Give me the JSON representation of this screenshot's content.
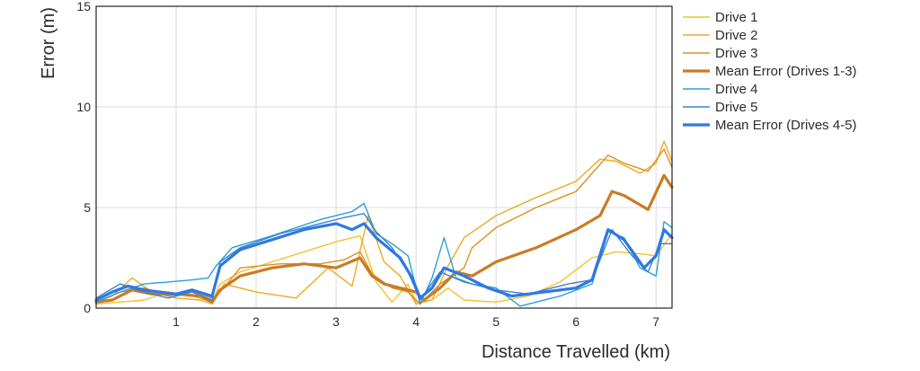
{
  "chart_data": {
    "type": "line",
    "title": "",
    "xlabel": "Distance Travelled (km)",
    "ylabel": "Error (m)",
    "xlim": [
      0,
      7.2
    ],
    "ylim": [
      0,
      15
    ],
    "x_ticks": [
      1,
      2,
      3,
      4,
      5,
      6,
      7
    ],
    "y_ticks": [
      0,
      5,
      10,
      15
    ],
    "grid": true,
    "legend_position": "right",
    "series": [
      {
        "name": "Drive 1",
        "color": "#f2c230",
        "width": 1.4,
        "x": [
          0.0,
          0.3,
          0.6,
          0.9,
          1.2,
          1.45,
          1.55,
          1.8,
          2.2,
          2.6,
          3.0,
          3.3,
          3.5,
          3.7,
          3.9,
          4.0,
          4.2,
          4.4,
          4.6,
          5.0,
          5.4,
          5.8,
          6.2,
          6.5,
          6.8,
          7.0,
          7.2
        ],
        "y": [
          0.2,
          0.3,
          0.4,
          0.8,
          0.6,
          0.3,
          1.2,
          1.8,
          2.3,
          2.8,
          3.3,
          3.6,
          1.3,
          0.3,
          1.2,
          0.3,
          0.4,
          1.0,
          0.4,
          0.3,
          0.6,
          1.3,
          2.5,
          2.8,
          2.7,
          2.6,
          3.7
        ]
      },
      {
        "name": "Drive 2",
        "color": "#eeaa22",
        "width": 1.4,
        "x": [
          0.0,
          0.2,
          0.45,
          0.7,
          1.0,
          1.3,
          1.45,
          1.6,
          2.0,
          2.5,
          2.9,
          3.2,
          3.4,
          3.6,
          3.8,
          4.0,
          4.2,
          4.4,
          4.6,
          5.0,
          5.5,
          6.0,
          6.3,
          6.5,
          6.8,
          7.0,
          7.1,
          7.2
        ],
        "y": [
          0.3,
          0.6,
          1.5,
          0.8,
          0.5,
          0.4,
          0.2,
          1.2,
          0.8,
          0.5,
          2.0,
          1.1,
          4.6,
          2.3,
          1.6,
          0.2,
          0.4,
          2.1,
          3.5,
          4.6,
          5.5,
          6.3,
          7.4,
          7.3,
          6.7,
          7.2,
          8.3,
          7.3
        ]
      },
      {
        "name": "Drive 3",
        "color": "#e08f1e",
        "width": 1.4,
        "x": [
          0.0,
          0.3,
          0.6,
          0.9,
          1.2,
          1.45,
          1.55,
          1.8,
          2.3,
          2.8,
          3.1,
          3.3,
          3.45,
          3.7,
          3.9,
          4.05,
          4.3,
          4.6,
          4.7,
          5.0,
          5.5,
          6.0,
          6.4,
          6.6,
          6.9,
          7.1,
          7.2
        ],
        "y": [
          0.3,
          0.8,
          1.0,
          0.6,
          0.8,
          0.5,
          0.8,
          2.0,
          2.2,
          2.2,
          2.4,
          2.8,
          1.7,
          1.0,
          0.8,
          0.2,
          1.2,
          2.0,
          3.0,
          4.0,
          5.0,
          5.8,
          7.6,
          7.2,
          6.8,
          7.9,
          7.0
        ]
      },
      {
        "name": "Mean Error (Drives 1-3)",
        "color": "#c97b25",
        "width": 3.2,
        "x": [
          0.0,
          0.2,
          0.45,
          0.7,
          1.0,
          1.3,
          1.45,
          1.55,
          1.8,
          2.2,
          2.6,
          3.0,
          3.3,
          3.45,
          3.6,
          3.8,
          4.0,
          4.1,
          4.3,
          4.5,
          4.7,
          5.0,
          5.5,
          6.0,
          6.3,
          6.45,
          6.6,
          6.9,
          7.1,
          7.2
        ],
        "y": [
          0.3,
          0.4,
          0.9,
          0.7,
          0.7,
          0.6,
          0.3,
          0.9,
          1.6,
          2.0,
          2.2,
          2.0,
          2.5,
          1.6,
          1.2,
          1.0,
          0.8,
          0.4,
          1.0,
          1.8,
          1.6,
          2.3,
          3.0,
          3.9,
          4.6,
          5.8,
          5.6,
          4.9,
          6.6,
          6.0
        ]
      },
      {
        "name": "Drive 4",
        "color": "#2aa0d8",
        "width": 1.4,
        "x": [
          0.0,
          0.3,
          0.6,
          0.9,
          1.2,
          1.4,
          1.5,
          1.7,
          2.2,
          2.8,
          3.2,
          3.35,
          3.5,
          3.7,
          3.9,
          4.05,
          4.2,
          4.35,
          4.5,
          4.7,
          5.0,
          5.3,
          5.8,
          6.2,
          6.4,
          6.6,
          6.8,
          7.0,
          7.1,
          7.2
        ],
        "y": [
          0.3,
          0.8,
          1.2,
          1.3,
          1.4,
          1.5,
          2.1,
          3.0,
          3.6,
          4.4,
          4.8,
          5.2,
          3.7,
          3.2,
          2.6,
          0.2,
          1.5,
          3.5,
          1.5,
          1.2,
          1.0,
          0.1,
          0.6,
          1.2,
          3.8,
          3.5,
          2.0,
          1.6,
          4.3,
          4.0
        ]
      },
      {
        "name": "Drive 5",
        "color": "#3b82d6",
        "width": 1.4,
        "x": [
          0.0,
          0.3,
          0.6,
          0.9,
          1.2,
          1.45,
          1.55,
          1.8,
          2.3,
          2.8,
          3.1,
          3.35,
          3.5,
          3.7,
          3.9,
          4.05,
          4.3,
          4.6,
          5.0,
          5.4,
          5.9,
          6.2,
          6.45,
          6.7,
          6.9,
          7.05,
          7.2
        ],
        "y": [
          0.5,
          1.2,
          0.8,
          0.5,
          0.8,
          0.4,
          2.3,
          3.0,
          3.7,
          4.2,
          4.5,
          4.7,
          3.8,
          3.0,
          1.8,
          0.4,
          1.8,
          1.3,
          0.9,
          0.7,
          1.2,
          1.4,
          3.9,
          2.6,
          1.8,
          3.2,
          3.2
        ]
      },
      {
        "name": "Mean Error (Drives 4-5)",
        "color": "#2f78e0",
        "width": 3.2,
        "x": [
          0.0,
          0.2,
          0.4,
          0.6,
          0.8,
          1.0,
          1.2,
          1.45,
          1.55,
          1.8,
          2.2,
          2.6,
          3.0,
          3.2,
          3.35,
          3.5,
          3.65,
          3.8,
          3.95,
          4.05,
          4.2,
          4.35,
          4.6,
          4.9,
          5.2,
          5.6,
          6.0,
          6.2,
          6.4,
          6.6,
          6.85,
          7.0,
          7.1,
          7.2
        ],
        "y": [
          0.4,
          0.8,
          1.1,
          0.9,
          0.8,
          0.7,
          0.9,
          0.6,
          2.1,
          2.9,
          3.4,
          3.9,
          4.2,
          3.9,
          4.2,
          3.5,
          3.0,
          2.5,
          1.5,
          0.5,
          1.0,
          2.0,
          1.6,
          1.0,
          0.6,
          0.8,
          1.0,
          1.4,
          3.9,
          3.4,
          2.0,
          2.6,
          3.9,
          3.5
        ]
      }
    ]
  }
}
